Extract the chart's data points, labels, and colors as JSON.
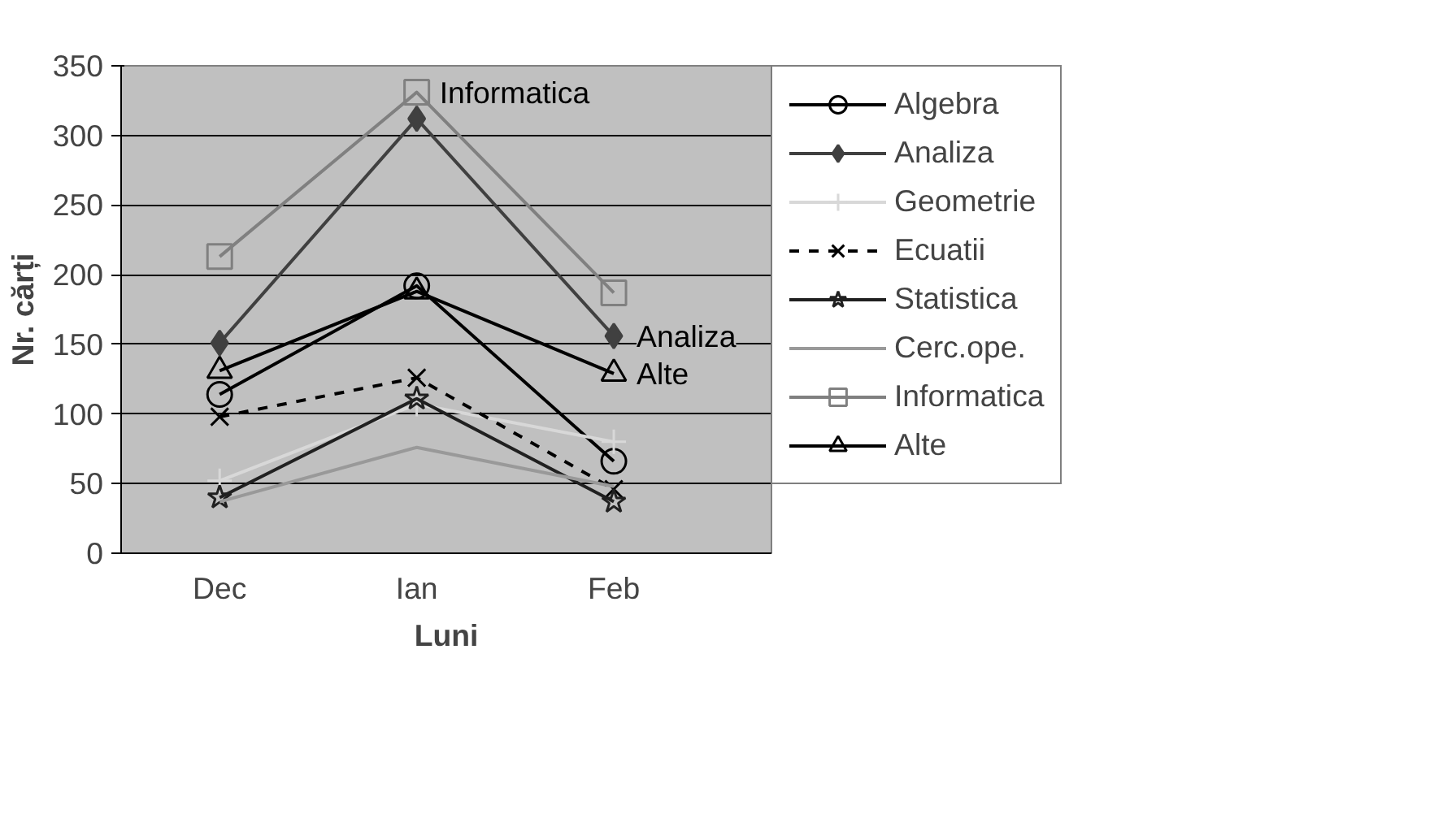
{
  "chart_data": {
    "type": "line",
    "xlabel": "Luni",
    "ylabel": "Nr. cărți",
    "categories": [
      "Dec",
      "Ian",
      "Feb"
    ],
    "series": [
      {
        "name": "Algebra",
        "color": "#000000",
        "marker": "circle",
        "line_style": "solid",
        "values": [
          114,
          192,
          66
        ]
      },
      {
        "name": "Analiza",
        "color": "#404040",
        "marker": "diamond",
        "line_style": "solid",
        "values": [
          151,
          312,
          156
        ]
      },
      {
        "name": "Geometrie",
        "color": "#d8d8d8",
        "marker": "cross",
        "line_style": "solid",
        "values": [
          52,
          107,
          80
        ]
      },
      {
        "name": "Ecuatii",
        "color": "#000000",
        "marker": "x",
        "line_style": "dashed",
        "values": [
          98,
          126,
          46
        ]
      },
      {
        "name": "Statistica",
        "color": "#202020",
        "marker": "star",
        "line_style": "solid",
        "values": [
          40,
          111,
          37
        ]
      },
      {
        "name": "Cerc.ope.",
        "color": "#999999",
        "marker": "none",
        "line_style": "solid",
        "values": [
          37,
          76,
          48
        ]
      },
      {
        "name": "Informatica",
        "color": "#808080",
        "marker": "square",
        "line_style": "solid",
        "values": [
          213,
          331,
          187
        ]
      },
      {
        "name": "Alte",
        "color": "#000000",
        "marker": "triangle",
        "line_style": "solid",
        "values": [
          131,
          188,
          129
        ]
      }
    ],
    "annotations": [
      {
        "text": "Informatica",
        "x": "Ian",
        "y": 331
      },
      {
        "text": "Analiza",
        "x": "Feb",
        "y": 156
      },
      {
        "text": "Alte",
        "x": "Feb",
        "y": 129
      }
    ],
    "ylim": [
      0,
      350
    ],
    "yticks": [
      0,
      50,
      100,
      150,
      200,
      250,
      300,
      350
    ],
    "grid": "y",
    "legend": "right"
  }
}
